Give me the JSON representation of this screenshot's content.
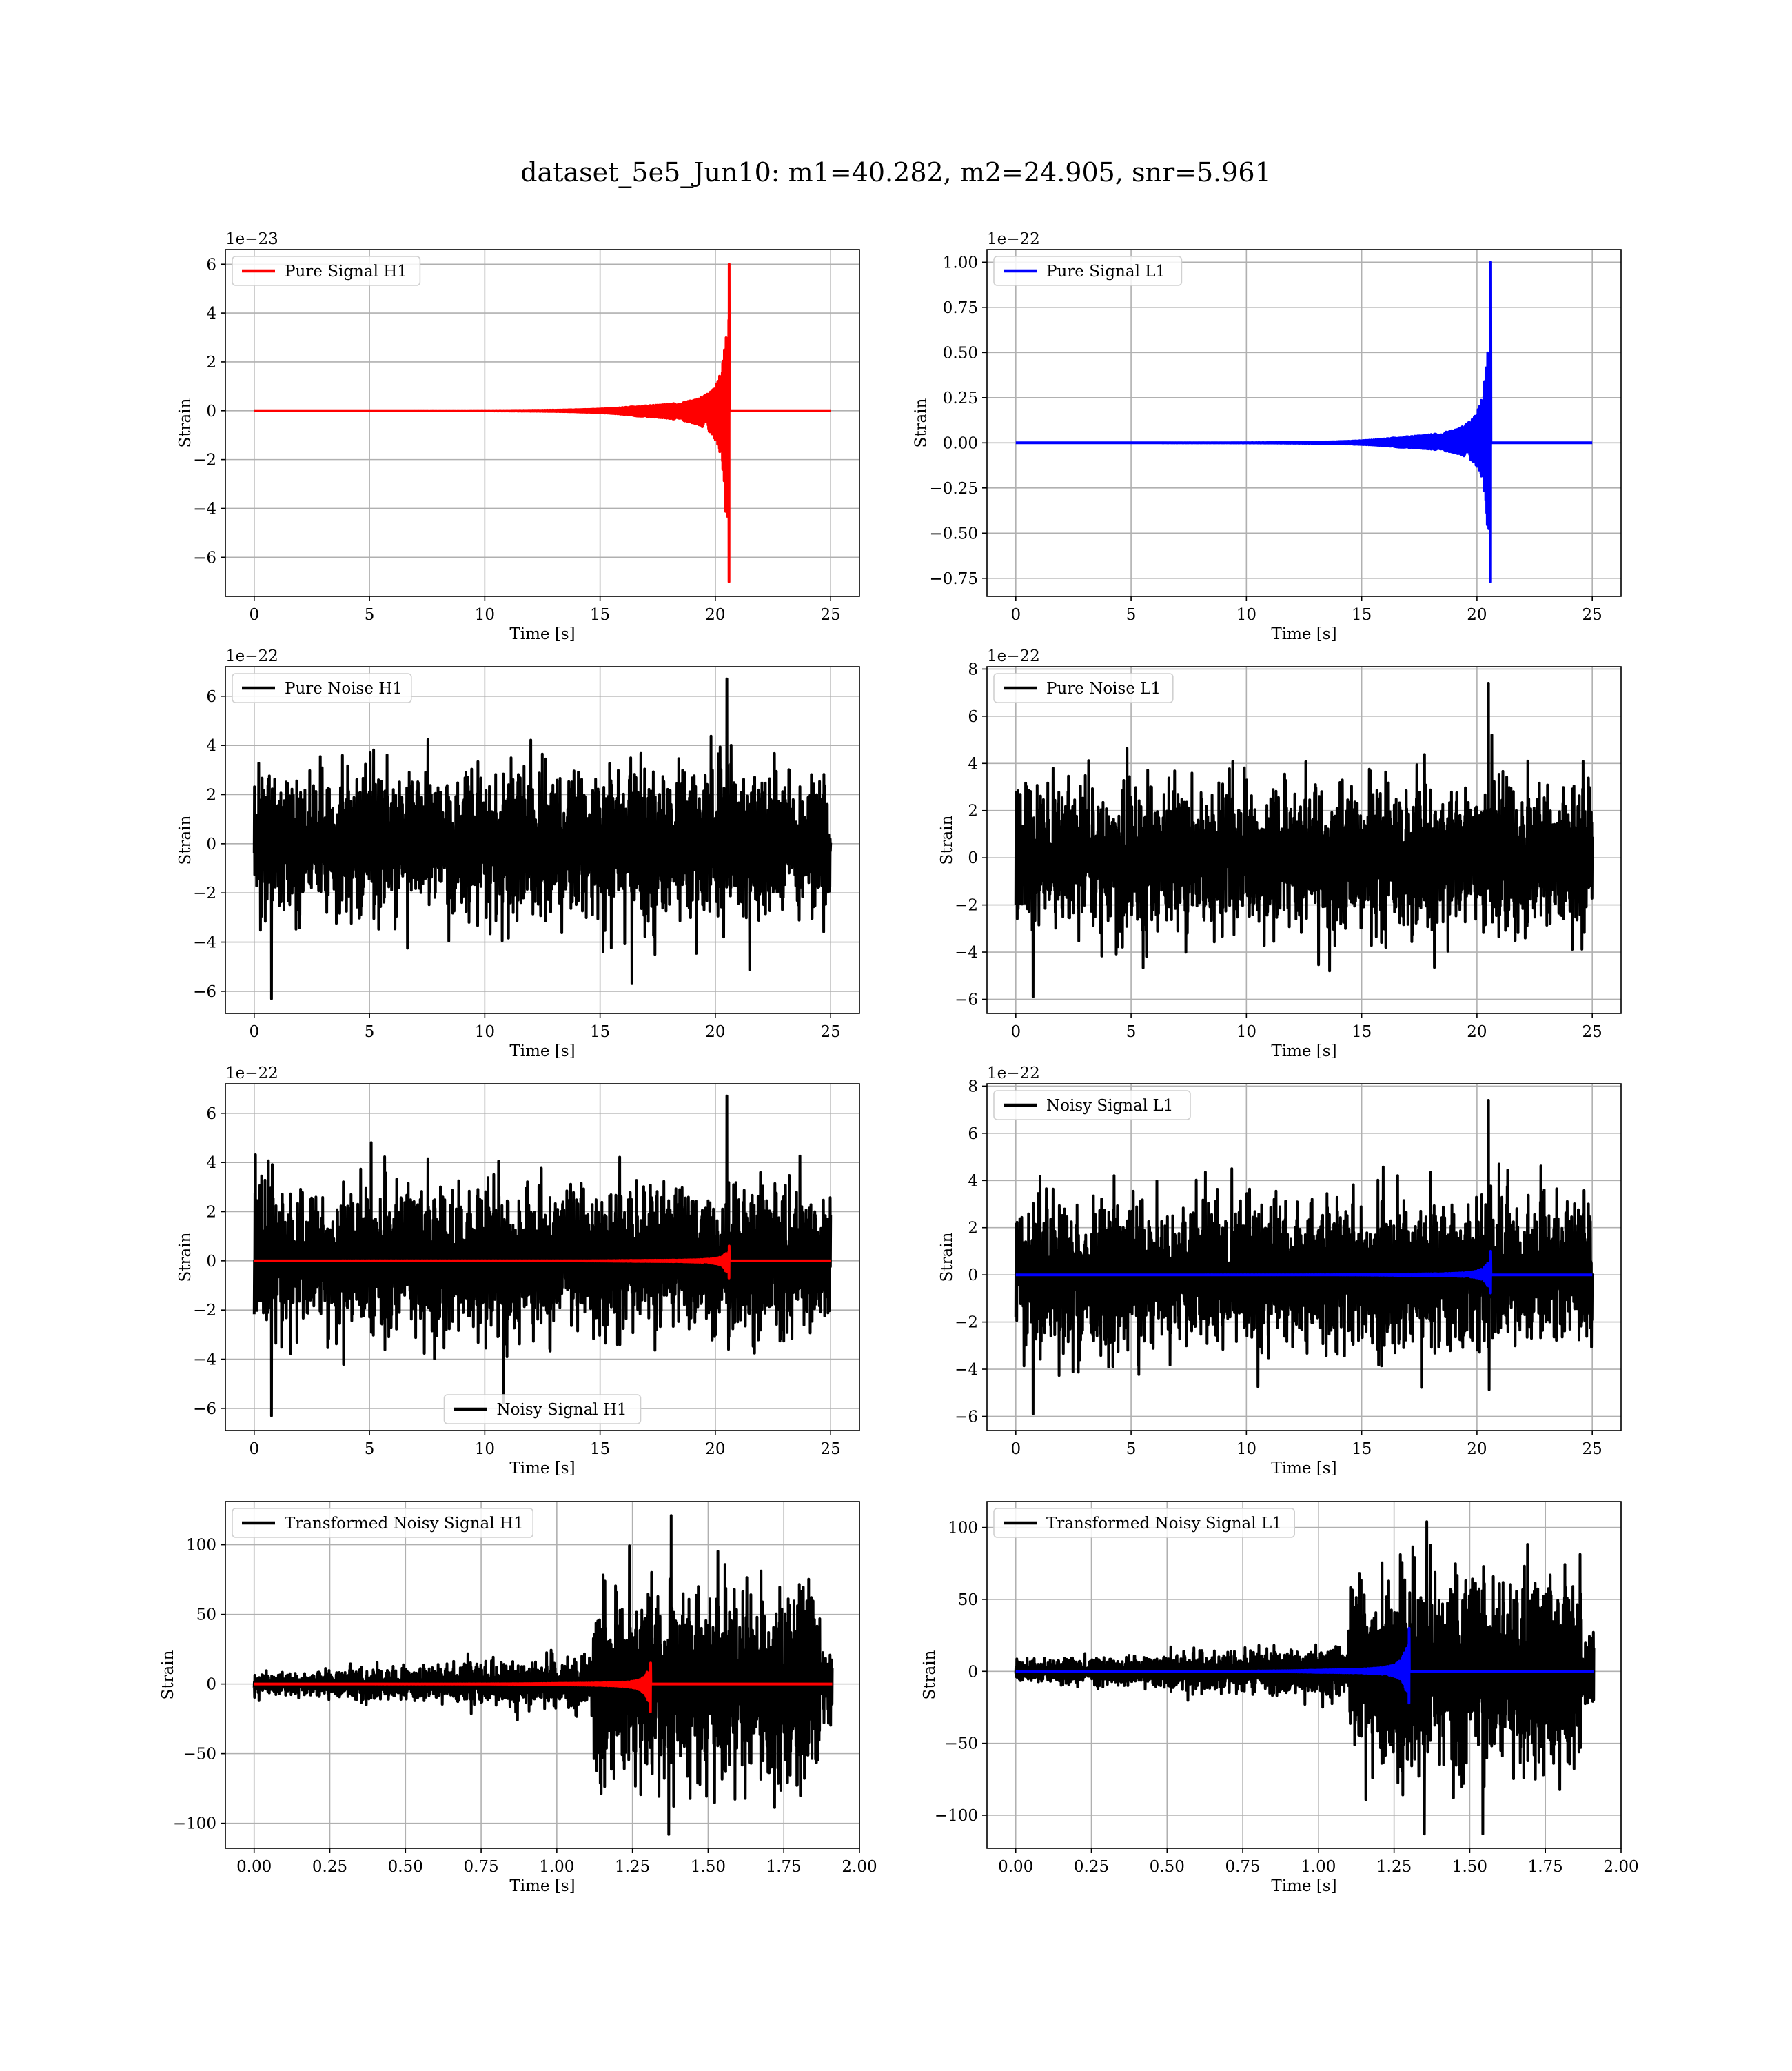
{
  "figure": {
    "title": "dataset_5e5_Jun10: m1=40.282, m2=24.905, snr=5.961"
  },
  "colors": {
    "h1": "#ff0000",
    "l1": "#0000ff",
    "noise": "#000000",
    "grid": "#b0b0b0"
  },
  "chart_data": [
    {
      "type": "line",
      "panel": "pure-signal-h1",
      "xlabel": "Time [s]",
      "ylabel": "Strain",
      "offset_text": "1e−23",
      "xlim": [
        -1.25,
        26.25
      ],
      "ylim": [
        -7.6,
        6.6
      ],
      "xticks": [
        0,
        5,
        10,
        15,
        20,
        25
      ],
      "xtick_labels": [
        "0",
        "5",
        "10",
        "15",
        "20",
        "25"
      ],
      "yticks": [
        -6,
        -4,
        -2,
        0,
        2,
        4,
        6
      ],
      "ytick_labels": [
        "−6",
        "−4",
        "−2",
        "0",
        "2",
        "4",
        "6"
      ],
      "grid": true,
      "legend": "top-left",
      "series": [
        {
          "name": "Pure Signal H1",
          "color": "#ff0000",
          "kind": "chirp",
          "x_range": [
            0,
            25
          ],
          "merger_time": 20.6,
          "peak_pos": 6.0,
          "peak_neg": -7.0
        }
      ]
    },
    {
      "type": "line",
      "panel": "pure-signal-l1",
      "xlabel": "Time [s]",
      "ylabel": "Strain",
      "offset_text": "1e−22",
      "xlim": [
        -1.25,
        26.25
      ],
      "ylim": [
        -0.85,
        1.07
      ],
      "xticks": [
        0,
        5,
        10,
        15,
        20,
        25
      ],
      "xtick_labels": [
        "0",
        "5",
        "10",
        "15",
        "20",
        "25"
      ],
      "yticks": [
        -0.75,
        -0.5,
        -0.25,
        0,
        0.25,
        0.5,
        0.75,
        1.0
      ],
      "ytick_labels": [
        "−0.75",
        "−0.50",
        "−0.25",
        "0.00",
        "0.25",
        "0.50",
        "0.75",
        "1.00"
      ],
      "grid": true,
      "legend": "top-left",
      "series": [
        {
          "name": "Pure Signal L1",
          "color": "#0000ff",
          "kind": "chirp",
          "x_range": [
            0,
            25
          ],
          "merger_time": 20.6,
          "peak_pos": 1.0,
          "peak_neg": -0.77
        }
      ]
    },
    {
      "type": "line",
      "panel": "pure-noise-h1",
      "xlabel": "Time [s]",
      "ylabel": "Strain",
      "offset_text": "1e−22",
      "xlim": [
        -1.25,
        26.25
      ],
      "ylim": [
        -6.9,
        7.2
      ],
      "xticks": [
        0,
        5,
        10,
        15,
        20,
        25
      ],
      "xtick_labels": [
        "0",
        "5",
        "10",
        "15",
        "20",
        "25"
      ],
      "yticks": [
        -6,
        -4,
        -2,
        0,
        2,
        4,
        6
      ],
      "ytick_labels": [
        "−6",
        "−4",
        "−2",
        "0",
        "2",
        "4",
        "6"
      ],
      "grid": true,
      "legend": "top-left",
      "series": [
        {
          "name": "Pure Noise H1",
          "color": "#000000",
          "kind": "noise",
          "x_range": [
            0,
            25
          ],
          "min": -6.3,
          "max": 6.7
        }
      ]
    },
    {
      "type": "line",
      "panel": "pure-noise-l1",
      "xlabel": "Time [s]",
      "ylabel": "Strain",
      "offset_text": "1e−22",
      "xlim": [
        -1.25,
        26.25
      ],
      "ylim": [
        -6.6,
        8.1
      ],
      "xticks": [
        0,
        5,
        10,
        15,
        20,
        25
      ],
      "xtick_labels": [
        "0",
        "5",
        "10",
        "15",
        "20",
        "25"
      ],
      "yticks": [
        -6,
        -4,
        -2,
        0,
        2,
        4,
        6,
        8
      ],
      "ytick_labels": [
        "−6",
        "−4",
        "−2",
        "0",
        "2",
        "4",
        "6",
        "8"
      ],
      "grid": true,
      "legend": "top-left",
      "series": [
        {
          "name": "Pure Noise L1",
          "color": "#000000",
          "kind": "noise",
          "x_range": [
            0,
            25
          ],
          "min": -5.9,
          "max": 7.4
        }
      ]
    },
    {
      "type": "line",
      "panel": "noisy-signal-h1",
      "xlabel": "Time [s]",
      "ylabel": "Strain",
      "offset_text": "1e−22",
      "xlim": [
        -1.25,
        26.25
      ],
      "ylim": [
        -6.9,
        7.2
      ],
      "xticks": [
        0,
        5,
        10,
        15,
        20,
        25
      ],
      "xtick_labels": [
        "0",
        "5",
        "10",
        "15",
        "20",
        "25"
      ],
      "yticks": [
        -6,
        -4,
        -2,
        0,
        2,
        4,
        6
      ],
      "ytick_labels": [
        "−6",
        "−4",
        "−2",
        "0",
        "2",
        "4",
        "6"
      ],
      "grid": true,
      "legend": "bottom-center",
      "series": [
        {
          "name": "Noisy Signal H1",
          "color": "#000000",
          "kind": "noise",
          "x_range": [
            0,
            25
          ],
          "min": -6.3,
          "max": 6.7
        },
        {
          "color": "#ff0000",
          "kind": "chirp",
          "x_range": [
            0,
            25
          ],
          "merger_time": 20.6,
          "peak_pos": 0.6,
          "peak_neg": -0.7
        }
      ]
    },
    {
      "type": "line",
      "panel": "noisy-signal-l1",
      "xlabel": "Time [s]",
      "ylabel": "Strain",
      "offset_text": "1e−22",
      "xlim": [
        -1.25,
        26.25
      ],
      "ylim": [
        -6.6,
        8.1
      ],
      "xticks": [
        0,
        5,
        10,
        15,
        20,
        25
      ],
      "xtick_labels": [
        "0",
        "5",
        "10",
        "15",
        "20",
        "25"
      ],
      "yticks": [
        -6,
        -4,
        -2,
        0,
        2,
        4,
        6,
        8
      ],
      "ytick_labels": [
        "−6",
        "−4",
        "−2",
        "0",
        "2",
        "4",
        "6",
        "8"
      ],
      "grid": true,
      "legend": "top-left",
      "series": [
        {
          "name": "Noisy Signal L1",
          "color": "#000000",
          "kind": "noise",
          "x_range": [
            0,
            25
          ],
          "min": -5.9,
          "max": 7.4
        },
        {
          "color": "#0000ff",
          "kind": "chirp",
          "x_range": [
            0,
            25
          ],
          "merger_time": 20.6,
          "peak_pos": 1.0,
          "peak_neg": -0.77
        }
      ]
    },
    {
      "type": "line",
      "panel": "transformed-noisy-signal-h1",
      "xlabel": "Time [s]",
      "ylabel": "Strain",
      "offset_text": "",
      "xlim": [
        -0.095,
        2.0
      ],
      "ylim": [
        -118,
        131
      ],
      "xticks": [
        0,
        0.25,
        0.5,
        0.75,
        1.0,
        1.25,
        1.5,
        1.75,
        2.0
      ],
      "xtick_labels": [
        "0.00",
        "0.25",
        "0.50",
        "0.75",
        "1.00",
        "1.25",
        "1.50",
        "1.75",
        "2.00"
      ],
      "yticks": [
        -100,
        -50,
        0,
        50,
        100
      ],
      "ytick_labels": [
        "−100",
        "−50",
        "0",
        "50",
        "100"
      ],
      "grid": true,
      "legend": "top-left",
      "series": [
        {
          "name": "Transformed Noisy Signal H1",
          "color": "#000000",
          "kind": "whitened",
          "x_range": [
            0,
            1.91
          ],
          "loud_start": 1.12,
          "loud_end": 1.87,
          "min": -108,
          "max": 121
        },
        {
          "color": "#ff0000",
          "kind": "chirp",
          "x_range": [
            0,
            1.91
          ],
          "merger_time": 1.31,
          "peak_pos": 15,
          "peak_neg": -20
        }
      ]
    },
    {
      "type": "line",
      "panel": "transformed-noisy-signal-l1",
      "xlabel": "Time [s]",
      "ylabel": "Strain",
      "offset_text": "",
      "xlim": [
        -0.095,
        2.0
      ],
      "ylim": [
        -123,
        118
      ],
      "xticks": [
        0,
        0.25,
        0.5,
        0.75,
        1.0,
        1.25,
        1.5,
        1.75,
        2.0
      ],
      "xtick_labels": [
        "0.00",
        "0.25",
        "0.50",
        "0.75",
        "1.00",
        "1.25",
        "1.50",
        "1.75",
        "2.00"
      ],
      "yticks": [
        -100,
        -50,
        0,
        50,
        100
      ],
      "ytick_labels": [
        "−100",
        "−50",
        "0",
        "50",
        "100"
      ],
      "grid": true,
      "legend": "top-left",
      "series": [
        {
          "name": "Transformed Noisy Signal L1",
          "color": "#000000",
          "kind": "whitened",
          "x_range": [
            0,
            1.91
          ],
          "loud_start": 1.1,
          "loud_end": 1.87,
          "min": -113,
          "max": 104
        },
        {
          "color": "#0000ff",
          "kind": "chirp",
          "x_range": [
            0,
            1.91
          ],
          "merger_time": 1.3,
          "peak_pos": 30,
          "peak_neg": -22
        }
      ]
    }
  ]
}
